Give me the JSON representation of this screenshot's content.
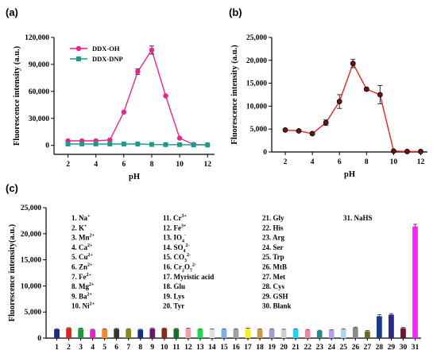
{
  "chart_data": [
    {
      "panel": "(a)",
      "type": "line",
      "xlabel": "pH",
      "ylabel": "Fluorescence intensity (a.u.)",
      "xlim": [
        1,
        12.5
      ],
      "ylim": [
        -10000,
        120000
      ],
      "xticks": [
        2,
        4,
        6,
        8,
        10,
        12
      ],
      "yticks": [
        0,
        30000,
        60000,
        90000,
        120000
      ],
      "ytick_labels": [
        "0",
        "30,000",
        "60,000",
        "90,000",
        "120,000"
      ],
      "legend_position": "top-left",
      "series": [
        {
          "name": "DDX-OH",
          "color": "#e8248f",
          "marker": "circle",
          "x": [
            2,
            3,
            4,
            5,
            6,
            7,
            8,
            9,
            10,
            11,
            12
          ],
          "y": [
            5000,
            5000,
            5000,
            6000,
            37000,
            82000,
            106000,
            55000,
            8000,
            1000,
            500
          ],
          "err": [
            300,
            300,
            300,
            400,
            800,
            3000,
            4500,
            800,
            500,
            200,
            200
          ]
        },
        {
          "name": "DDX-DNP",
          "color": "#1a9b8c",
          "marker": "square",
          "x": [
            2,
            3,
            4,
            5,
            6,
            7,
            8,
            9,
            10,
            11,
            12
          ],
          "y": [
            1500,
            1500,
            1500,
            1500,
            1500,
            1500,
            1000,
            800,
            800,
            500,
            500
          ],
          "err": [
            0,
            0,
            0,
            0,
            0,
            0,
            0,
            0,
            0,
            0,
            0
          ]
        }
      ]
    },
    {
      "panel": "(b)",
      "type": "line",
      "xlabel": "pH",
      "ylabel": "Fluorescence intensity (a.u.)",
      "xlim": [
        1,
        12.5
      ],
      "ylim": [
        0,
        25000
      ],
      "xticks": [
        2,
        4,
        6,
        8,
        10,
        12
      ],
      "yticks": [
        0,
        5000,
        10000,
        15000,
        20000,
        25000
      ],
      "ytick_labels": [
        "0",
        "5,000",
        "10,000",
        "15,000",
        "20,000",
        "25,000"
      ],
      "series": [
        {
          "color": "#e8231f",
          "marker_fill": "#6a1512",
          "x": [
            2,
            3,
            4,
            5,
            6,
            7,
            8,
            9,
            10,
            11,
            12
          ],
          "y": [
            4800,
            4600,
            4000,
            6400,
            11000,
            19300,
            13700,
            12500,
            200,
            100,
            100
          ],
          "err": [
            200,
            200,
            300,
            600,
            1500,
            900,
            300,
            2000,
            100,
            100,
            100
          ]
        }
      ]
    },
    {
      "panel": "(c)",
      "type": "bar",
      "ylabel": "Fluorescence intensity(a.u.)",
      "ylim": [
        0,
        25000
      ],
      "yticks": [
        0,
        5000,
        10000,
        15000,
        20000,
        25000
      ],
      "ytick_labels": [
        "0",
        "5,000",
        "10,000",
        "15,000",
        "20,000",
        "25,000"
      ],
      "categories": [
        "1",
        "2",
        "3",
        "4",
        "5",
        "6",
        "7",
        "8",
        "9",
        "10",
        "11",
        "12",
        "13",
        "14",
        "15",
        "16",
        "17",
        "18",
        "19",
        "20",
        "21",
        "22",
        "23",
        "24",
        "25",
        "26",
        "27",
        "28",
        "29",
        "30",
        "31"
      ],
      "values": [
        1700,
        1900,
        1800,
        1600,
        1700,
        1750,
        1700,
        1600,
        1800,
        1850,
        1750,
        1800,
        1700,
        1650,
        1700,
        1700,
        1800,
        1650,
        1700,
        1600,
        1700,
        1550,
        1400,
        1500,
        1700,
        2000,
        1300,
        4200,
        4500,
        1900,
        21400
      ],
      "err": [
        100,
        100,
        100,
        100,
        100,
        100,
        100,
        100,
        150,
        100,
        100,
        100,
        100,
        100,
        100,
        100,
        100,
        100,
        100,
        100,
        100,
        100,
        100,
        100,
        100,
        100,
        150,
        300,
        200,
        150,
        400
      ],
      "colors": [
        "#1a2a8a",
        "#e8231f",
        "#1a9b3a",
        "#e822c8",
        "#f08a2a",
        "#333333",
        "#8a8a1a",
        "#1a2a8a",
        "#6a1a6a",
        "#8a2a1a",
        "#1a6a2a",
        "#f0a0a0",
        "#1ad84a",
        "#e0e0e0",
        "#7ab0f0",
        "#a0a0a0",
        "#f0f01a",
        "#c89a4a",
        "#a0a0d0",
        "#d0d0d0",
        "#1ad8e8",
        "#e88aa0",
        "#2a8a8a",
        "#b0a0f0",
        "#a8d8f0",
        "#8a8a8a",
        "#6a6a1a",
        "#1a3a8a",
        "#2a2a8a",
        "#6a1a2a",
        "#ff22ff"
      ],
      "legend_columns": [
        [
          {
            "n": "1. Na",
            "sup": "+",
            "sub": ""
          },
          {
            "n": "2. K",
            "sup": "+",
            "sub": ""
          },
          {
            "n": "3. Mn",
            "sup": "2+",
            "sub": ""
          },
          {
            "n": "4. Ca",
            "sup": "2+",
            "sub": ""
          },
          {
            "n": "5. Cu",
            "sup": "2+",
            "sub": ""
          },
          {
            "n": "6. Zn",
            "sup": "2+",
            "sub": ""
          },
          {
            "n": "7. Fe",
            "sup": "2+",
            "sub": ""
          },
          {
            "n": "8. Mg",
            "sup": "2+",
            "sub": ""
          },
          {
            "n": "9. Ba",
            "sup": "2+",
            "sub": ""
          },
          {
            "n": "10. Ni",
            "sup": "2+",
            "sub": ""
          }
        ],
        [
          {
            "n": "11. Cr",
            "sup": "3+",
            "sub": ""
          },
          {
            "n": "12. Fe",
            "sup": "3+",
            "sub": ""
          },
          {
            "n": "13. IO",
            "sub": "4",
            "sup": "-"
          },
          {
            "n": "14. SO",
            "sub": "4",
            "sup": "2-"
          },
          {
            "n": "15. CO",
            "sub": "3",
            "sup": "2-"
          },
          {
            "n": "16. Cr",
            "sub": "2",
            "sup": "",
            "tail": "O",
            "tail_sub": "7",
            "tail_sup": "2-"
          },
          {
            "n": "17. Myristic acid",
            "sup": "",
            "sub": ""
          },
          {
            "n": "18. Glu",
            "sup": "",
            "sub": ""
          },
          {
            "n": "19. Lys",
            "sup": "",
            "sub": ""
          },
          {
            "n": "20. Tyr",
            "sup": "",
            "sub": ""
          }
        ],
        [
          {
            "n": "21. Gly",
            "sup": "",
            "sub": ""
          },
          {
            "n": "22. His",
            "sup": "",
            "sub": ""
          },
          {
            "n": "23. Arg",
            "sup": "",
            "sub": ""
          },
          {
            "n": "24. Ser",
            "sup": "",
            "sub": ""
          },
          {
            "n": "25. Trp",
            "sup": "",
            "sub": ""
          },
          {
            "n": "26. MtB",
            "sup": "",
            "sub": ""
          },
          {
            "n": "27. Met",
            "sup": "",
            "sub": ""
          },
          {
            "n": "28. Cys",
            "sup": "",
            "sub": ""
          },
          {
            "n": "29. GSH",
            "sup": "",
            "sub": ""
          },
          {
            "n": "30. Blank",
            "sup": "",
            "sub": ""
          }
        ],
        [
          {
            "n": "31. NaHS",
            "sup": "",
            "sub": ""
          }
        ]
      ]
    }
  ]
}
